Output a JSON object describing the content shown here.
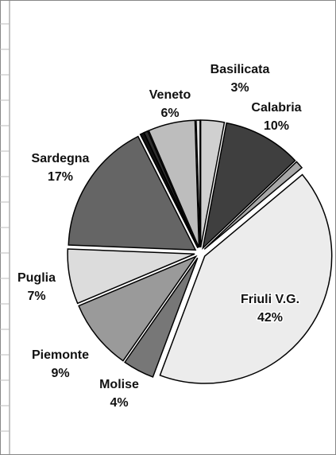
{
  "chart_data": {
    "type": "pie",
    "categories": [
      "Basilicata",
      "Calabria",
      null,
      "Friuli V.G.",
      "Molise",
      "Piemonte",
      "Puglia",
      "Sardegna",
      null,
      null,
      "Veneto",
      null
    ],
    "values": [
      3,
      10,
      1,
      42,
      4,
      9,
      7,
      17,
      0.5,
      0.5,
      6,
      0.5
    ],
    "value_labels": [
      "3%",
      "10%",
      null,
      "42%",
      "4%",
      "9%",
      "7%",
      "17%",
      null,
      null,
      "6%",
      null
    ],
    "colors": [
      "#d0d0d0",
      "#3f3f3f",
      "#a8a8a8",
      "#ececec",
      "#777777",
      "#9a9a9a",
      "#dcdcdc",
      "#656565",
      "#111111",
      "#2e2e2e",
      "#bdbdbd",
      "#dddddd"
    ]
  }
}
